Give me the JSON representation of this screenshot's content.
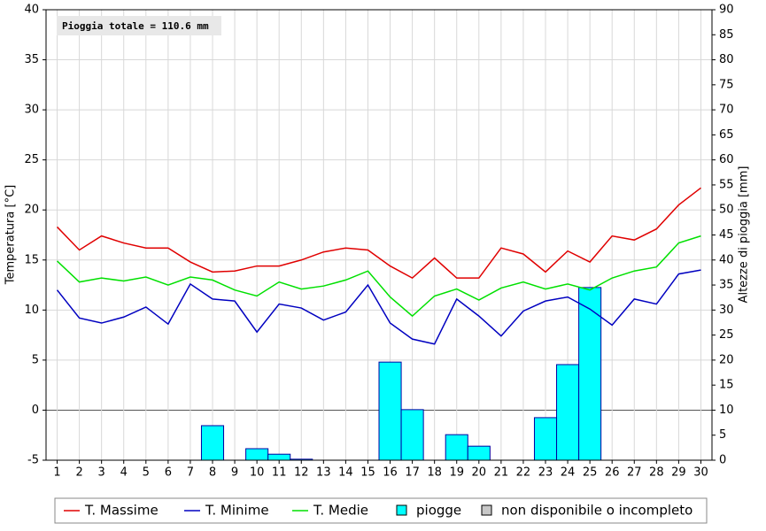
{
  "chart_data": {
    "type": "combo",
    "annotation": "Pioggia totale = 110.6 mm",
    "y_label": "Temperatura [°C]",
    "y2_label": "Altezze di pioggia [mm]",
    "x": [
      1,
      2,
      3,
      4,
      5,
      6,
      7,
      8,
      9,
      10,
      11,
      12,
      13,
      14,
      15,
      16,
      17,
      18,
      19,
      20,
      21,
      22,
      23,
      24,
      25,
      26,
      27,
      28,
      29,
      30
    ],
    "xlim": [
      0.5,
      30.5
    ],
    "ylim": [
      -5,
      40
    ],
    "yticks": [
      -5,
      0,
      5,
      10,
      15,
      20,
      25,
      30,
      35,
      40
    ],
    "y2lim": [
      0,
      90
    ],
    "y2ticks": [
      0,
      5,
      10,
      15,
      20,
      25,
      30,
      35,
      40,
      45,
      50,
      55,
      60,
      65,
      70,
      75,
      80,
      85,
      90
    ],
    "grid": true,
    "series": [
      {
        "name": "T. Massime",
        "type": "line",
        "color": "#e00000",
        "values": [
          18.3,
          16.0,
          17.4,
          16.7,
          16.2,
          16.2,
          14.8,
          13.8,
          13.9,
          14.4,
          14.4,
          15.0,
          15.8,
          16.2,
          16.0,
          14.4,
          13.2,
          15.2,
          13.2,
          13.2,
          16.2,
          15.6,
          13.8,
          15.9,
          14.8,
          17.4,
          17.0,
          18.1,
          20.5,
          22.2
        ]
      },
      {
        "name": "T. Minime",
        "type": "line",
        "color": "#0000c0",
        "values": [
          12.0,
          9.2,
          8.7,
          9.3,
          10.3,
          8.6,
          12.6,
          11.1,
          10.9,
          7.8,
          10.6,
          10.2,
          9.0,
          9.8,
          12.5,
          8.7,
          7.1,
          6.6,
          11.1,
          9.4,
          7.4,
          9.9,
          10.9,
          11.3,
          10.1,
          8.5,
          11.1,
          10.6,
          13.6,
          14.0
        ]
      },
      {
        "name": "T. Medie",
        "type": "line",
        "color": "#00e000",
        "values": [
          14.9,
          12.8,
          13.2,
          12.9,
          13.3,
          12.5,
          13.3,
          13.0,
          12.0,
          11.4,
          12.8,
          12.1,
          12.4,
          13.0,
          13.9,
          11.3,
          9.4,
          11.4,
          12.1,
          11.0,
          12.2,
          12.8,
          12.1,
          12.6,
          12.0,
          13.2,
          13.9,
          14.3,
          16.7,
          17.4
        ]
      },
      {
        "name": "piogge",
        "type": "bar",
        "axis": "y2",
        "color": "#00ffff",
        "values": [
          0,
          0,
          0,
          0,
          0,
          0,
          0,
          6.9,
          0,
          2.3,
          1.2,
          0.2,
          0,
          0,
          0,
          19.6,
          10.1,
          0,
          5.1,
          2.8,
          0,
          0,
          8.5,
          19.1,
          34.5,
          0,
          0,
          0,
          0,
          0
        ]
      }
    ],
    "legend_extra": {
      "label": "non disponibile o incompleto",
      "color": "#c8c8c8"
    }
  }
}
